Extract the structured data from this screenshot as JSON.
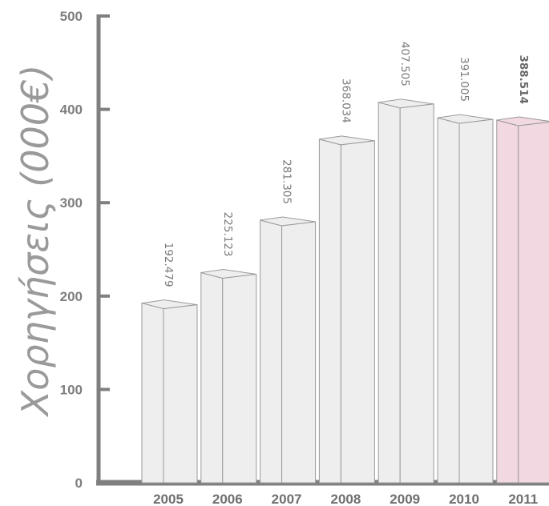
{
  "chart_data": {
    "type": "bar",
    "title": "",
    "xlabel": "",
    "ylabel": "Χορηγήσεις (000€)",
    "categories": [
      "2005",
      "2006",
      "2007",
      "2008",
      "2009",
      "2010",
      "2011"
    ],
    "values": [
      192.479,
      225.123,
      281.305,
      368.034,
      407.505,
      391.005,
      388.514
    ],
    "value_labels": [
      "192.479",
      "225.123",
      "281.305",
      "368.034",
      "407.505",
      "391.005",
      "388.514"
    ],
    "highlight_index": 6,
    "ylim": [
      0,
      500
    ],
    "yticks": [
      "0",
      "100",
      "200",
      "300",
      "400",
      "500"
    ],
    "grid": false,
    "colors": {
      "bar_fill": "#eeeeee",
      "bar_edge": "#9a9a9a",
      "highlight_fill": "#f2d8e1",
      "axis": "#7f7f7f"
    }
  }
}
